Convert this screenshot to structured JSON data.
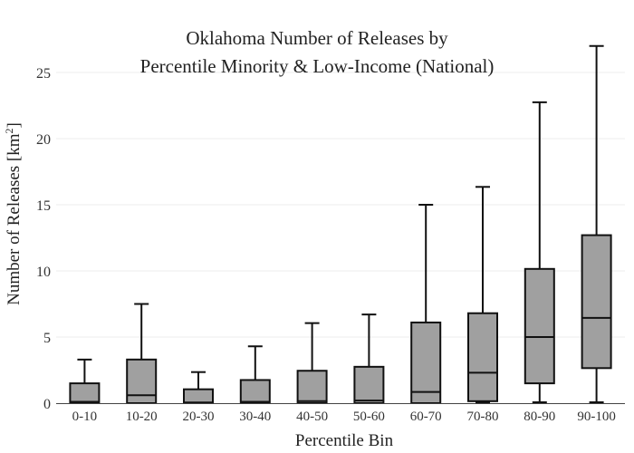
{
  "chart_data": {
    "type": "box",
    "title_line1": "Oklahoma Number of Releases by",
    "title_line2": "Percentile Minority & Low-Income (National)",
    "xlabel": "Percentile Bin",
    "ylabel_main": "Number of Releases  [km",
    "ylabel_sup": "2",
    "ylabel_end": "]",
    "ylim": [
      0,
      27.5
    ],
    "yticks": [
      0,
      5,
      10,
      15,
      20,
      25
    ],
    "grid": true,
    "box_color": "#a0a0a0",
    "categories": [
      "0-10",
      "10-20",
      "20-30",
      "30-40",
      "40-50",
      "50-60",
      "60-70",
      "70-80",
      "80-90",
      "90-100"
    ],
    "boxes": [
      {
        "min": 0,
        "q1": 0,
        "median": 0.1,
        "q3": 1.5,
        "max": 3.3
      },
      {
        "min": 0,
        "q1": 0,
        "median": 0.6,
        "q3": 3.3,
        "max": 7.5
      },
      {
        "min": 0,
        "q1": 0,
        "median": 0.05,
        "q3": 1.05,
        "max": 2.35
      },
      {
        "min": 0,
        "q1": 0,
        "median": 0.1,
        "q3": 1.75,
        "max": 4.3
      },
      {
        "min": 0,
        "q1": 0,
        "median": 0.15,
        "q3": 2.45,
        "max": 6.05
      },
      {
        "min": 0,
        "q1": 0,
        "median": 0.2,
        "q3": 2.75,
        "max": 6.7
      },
      {
        "min": 0,
        "q1": 0,
        "median": 0.85,
        "q3": 6.1,
        "max": 15.0
      },
      {
        "min": 0,
        "q1": 0.15,
        "median": 2.3,
        "q3": 6.8,
        "max": 16.35
      },
      {
        "min": 0,
        "q1": 1.5,
        "median": 5.0,
        "q3": 10.15,
        "max": 22.75
      },
      {
        "min": 0,
        "q1": 2.65,
        "median": 6.45,
        "q3": 12.7,
        "max": 27.0
      }
    ]
  }
}
